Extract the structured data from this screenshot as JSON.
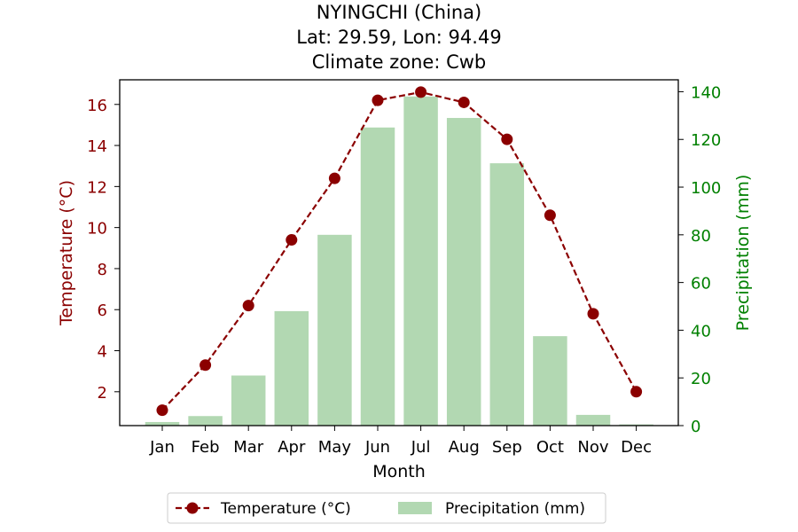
{
  "chart_data": {
    "type": "bar+line",
    "title_lines": [
      "NYINGCHI (China)",
      "Lat: 29.59, Lon: 94.49",
      "Climate zone: Cwb"
    ],
    "xlabel": "Month",
    "ylabel_left": "Temperature (°C)",
    "ylabel_right": "Precipitation (mm)",
    "categories": [
      "Jan",
      "Feb",
      "Mar",
      "Apr",
      "May",
      "Jun",
      "Jul",
      "Aug",
      "Sep",
      "Oct",
      "Nov",
      "Dec"
    ],
    "series": [
      {
        "name": "Temperature (°C)",
        "kind": "line",
        "axis": "left",
        "color": "#8b0000",
        "values": [
          1.1,
          3.3,
          6.2,
          9.4,
          12.4,
          16.2,
          16.6,
          16.1,
          14.3,
          10.6,
          5.8,
          2.0
        ]
      },
      {
        "name": "Precipitation (mm)",
        "kind": "bar",
        "axis": "right",
        "color": "#b2d8b2",
        "values": [
          1.5,
          4,
          21,
          48,
          80,
          125,
          138,
          129,
          110,
          37.5,
          4.5,
          0.5
        ]
      }
    ],
    "ylim_left": [
      0.35,
      17.2
    ],
    "yticks_left": [
      2,
      4,
      6,
      8,
      10,
      12,
      14,
      16
    ],
    "ylim_right": [
      0,
      145
    ],
    "yticks_right": [
      0,
      20,
      40,
      60,
      80,
      100,
      120,
      140
    ],
    "left_axis_color": "#8b0000",
    "right_axis_color": "#008000",
    "grid": false,
    "legend_position": "bottom-center"
  }
}
